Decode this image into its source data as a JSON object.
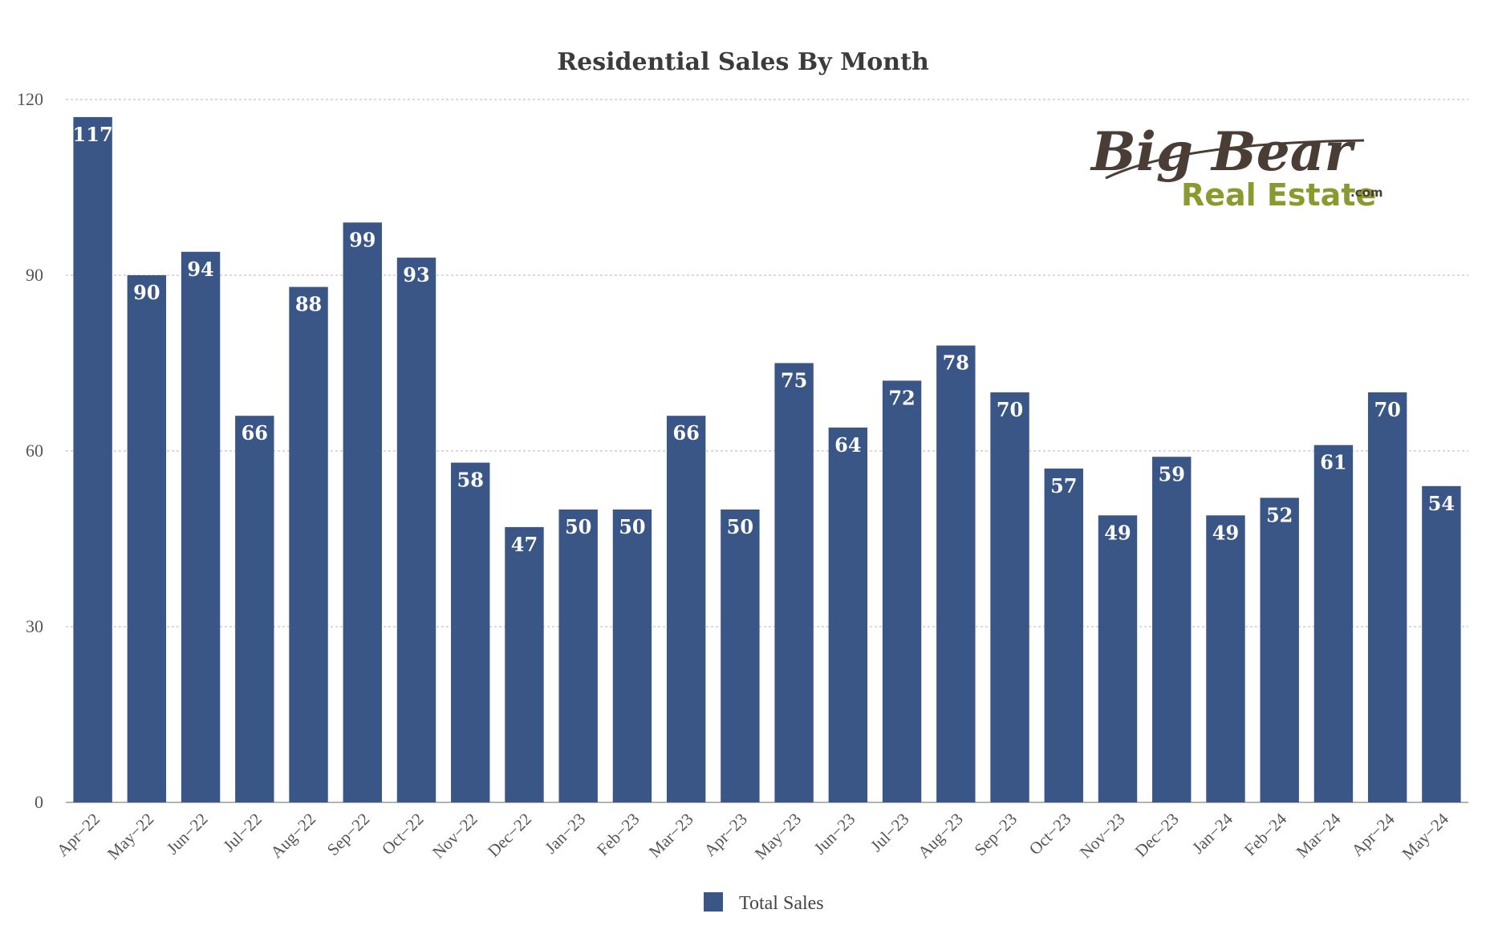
{
  "chart_data": {
    "type": "bar",
    "title": "Residential Sales By Month",
    "xlabel": "",
    "ylabel": "",
    "ylim": [
      0,
      120
    ],
    "yticks": [
      0,
      30,
      60,
      90,
      120
    ],
    "grid": true,
    "legend_position": "bottom-center",
    "categories": [
      "Apr−22",
      "May−22",
      "Jun−22",
      "Jul−22",
      "Aug−22",
      "Sep−22",
      "Oct−22",
      "Nov−22",
      "Dec−22",
      "Jan−23",
      "Feb−23",
      "Mar−23",
      "Apr−23",
      "May−23",
      "Jun−23",
      "Jul−23",
      "Aug−23",
      "Sep−23",
      "Oct−23",
      "Nov−23",
      "Dec−23",
      "Jan−24",
      "Feb−24",
      "Mar−24",
      "Apr−24",
      "May−24"
    ],
    "series": [
      {
        "name": "Total Sales",
        "color": "#3a5686",
        "values": [
          117,
          90,
          94,
          66,
          88,
          99,
          93,
          58,
          47,
          50,
          50,
          66,
          50,
          75,
          64,
          72,
          78,
          70,
          57,
          49,
          59,
          49,
          52,
          61,
          70,
          54
        ]
      }
    ]
  },
  "logo": {
    "line1": "Big Bear",
    "line2": "Real Estate",
    "suffix": ".com"
  }
}
